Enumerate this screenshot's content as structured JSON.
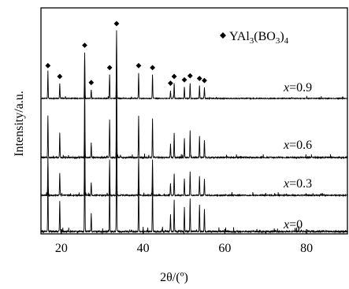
{
  "chart_data": {
    "type": "line",
    "title": "",
    "xlabel": "2θ/(º)",
    "ylabel": "Intensity/a.u.",
    "xlim": [
      15,
      90
    ],
    "x_ticks": [
      20,
      40,
      60,
      80
    ],
    "x_tick_labels": [
      "20",
      "40",
      "60",
      "80"
    ],
    "y_ticks": [],
    "grid": false,
    "legend": {
      "placement": "top-right",
      "marker": "diamond",
      "phase": "YAl",
      "sub1": "3",
      "mid": "(BO",
      "sub2": "3",
      "tail": ")",
      "sub3": "4"
    },
    "peaks_2theta": [
      16.7,
      19.6,
      25.7,
      27.3,
      31.8,
      33.5,
      38.9,
      42.3,
      46.7,
      47.6,
      50.1,
      51.5,
      53.8,
      55.0
    ],
    "peak_rel_intensity": [
      0.38,
      0.22,
      0.68,
      0.13,
      0.35,
      1.0,
      0.38,
      0.35,
      0.12,
      0.22,
      0.17,
      0.23,
      0.19,
      0.16
    ],
    "marker_2theta": [
      16.7,
      19.6,
      25.7,
      27.3,
      31.8,
      33.5,
      38.9,
      42.3,
      46.7,
      47.6,
      50.1,
      51.5,
      53.8,
      55.0
    ],
    "series": [
      {
        "name": "x=0.9",
        "prefix": "x",
        "value": "=0.9"
      },
      {
        "name": "x=0.6",
        "prefix": "x",
        "value": "=0.6"
      },
      {
        "name": "x=0.3",
        "prefix": "x",
        "value": "=0.3"
      },
      {
        "name": "x=0",
        "prefix": "x",
        "value": "=0"
      }
    ]
  },
  "colors": {
    "line": "#000000",
    "axis": "#000000",
    "background": "#ffffff"
  }
}
